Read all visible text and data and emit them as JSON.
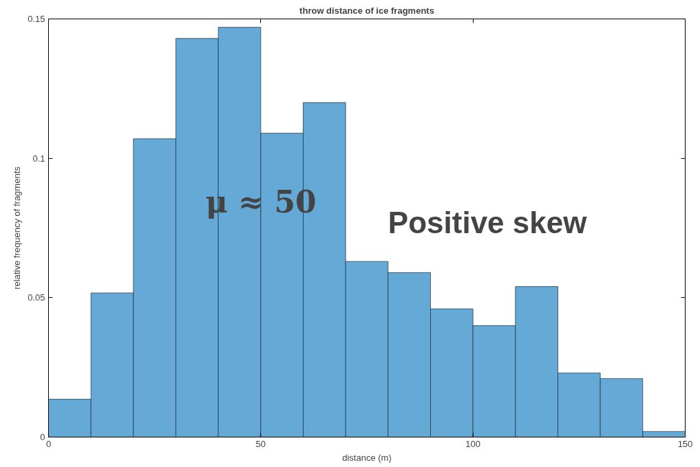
{
  "chart_data": {
    "type": "histogram",
    "title": "throw distance of ice fragments",
    "xlabel": "distance (m)",
    "ylabel": "relative frequency of fragments",
    "bins": [
      0,
      10,
      20,
      30,
      40,
      50,
      60,
      70,
      80,
      90,
      100,
      110,
      120,
      130,
      140,
      150
    ],
    "values": [
      0.0136,
      0.0517,
      0.107,
      0.143,
      0.147,
      0.109,
      0.12,
      0.063,
      0.059,
      0.046,
      0.04,
      0.054,
      0.023,
      0.021,
      0.002
    ],
    "color": "#65a9d7",
    "xlim": [
      0,
      150
    ],
    "ylim": [
      0,
      0.15
    ],
    "xticks": [
      0,
      50,
      100,
      150
    ],
    "yticks": [
      0,
      0.05,
      0.1,
      0.15
    ],
    "annotations": [
      "μ ≈ 50",
      "Positive skew"
    ],
    "grid": false
  }
}
